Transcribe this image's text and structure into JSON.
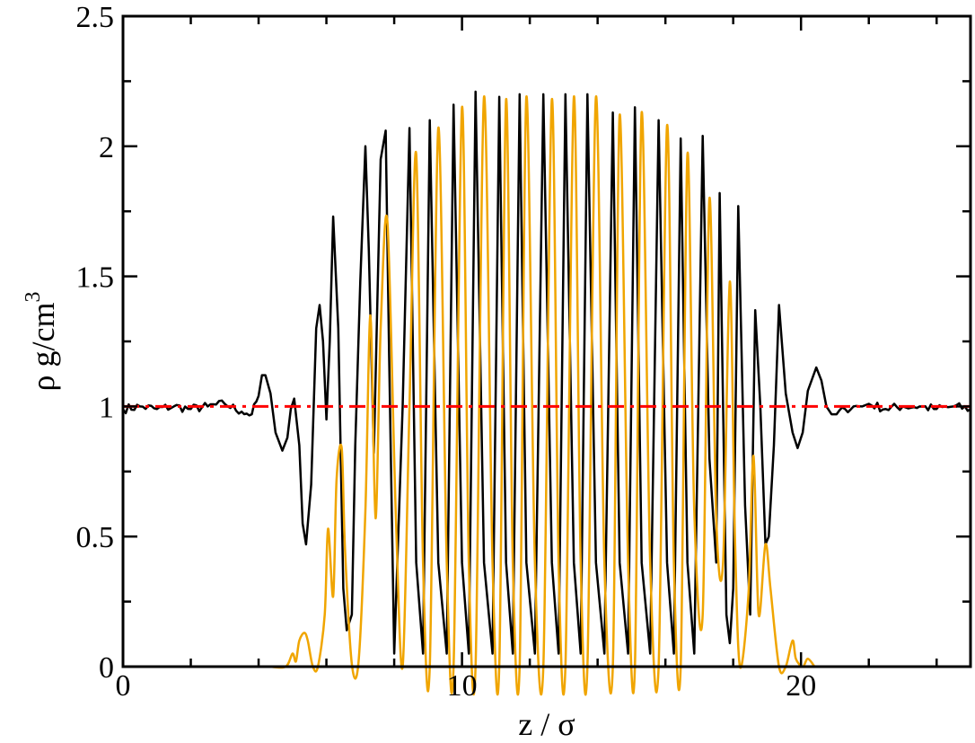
{
  "chart_data": {
    "type": "line",
    "xlabel": "z / σ",
    "ylabel": "ρ g/cm",
    "ylabel_superscript": "3",
    "xlim": [
      0,
      25
    ],
    "ylim": [
      0,
      2.5
    ],
    "x_ticks": [
      0,
      10,
      20
    ],
    "x_tick_labels": [
      "0",
      "10",
      "20"
    ],
    "y_ticks": [
      0,
      0.5,
      1,
      1.5,
      2,
      2.5
    ],
    "y_tick_labels": [
      "0",
      "0.5",
      "1",
      "1.5",
      "2",
      "2.5"
    ],
    "grid": false,
    "legend": "none",
    "series": [
      {
        "color": "#000000",
        "style": "solid",
        "x": [
          0,
          0.5,
          1,
          1.5,
          2,
          2.5,
          3,
          3.5,
          3.8,
          4.0,
          4.1,
          4.2,
          4.35,
          4.5,
          4.7,
          4.85,
          4.95,
          5.05,
          5.2,
          5.3,
          5.4,
          5.55,
          5.7,
          5.8,
          5.9,
          6.0,
          6.1,
          6.2,
          6.35,
          6.5,
          6.6,
          6.75,
          6.85,
          7.0,
          7.15,
          7.25,
          7.4,
          7.6,
          7.75,
          7.85,
          8.0,
          8.25,
          8.45,
          8.65,
          8.85,
          9.05,
          9.3,
          9.55,
          9.75,
          10.0,
          10.2,
          10.4,
          10.65,
          10.9,
          11.1,
          11.3,
          11.5,
          11.7,
          11.9,
          12.15,
          12.4,
          12.65,
          12.85,
          13.05,
          13.3,
          13.5,
          13.7,
          13.95,
          14.2,
          14.45,
          14.65,
          14.9,
          15.1,
          15.3,
          15.55,
          15.8,
          16.05,
          16.25,
          16.45,
          16.65,
          16.85,
          17.1,
          17.3,
          17.5,
          17.6,
          17.8,
          17.9,
          18.0,
          18.15,
          18.35,
          18.5,
          18.65,
          18.8,
          18.95,
          19.05,
          19.2,
          19.35,
          19.55,
          19.75,
          19.9,
          20.05,
          20.2,
          20.45,
          20.6,
          20.75,
          20.9,
          21.05,
          21.3,
          21.55,
          21.8,
          22,
          22.5,
          23,
          23.5,
          24,
          24.5,
          25
        ],
        "y": [
          0.99,
          1.0,
          0.99,
          1.0,
          0.99,
          1.0,
          1.01,
          0.98,
          0.97,
          1.04,
          1.12,
          1.12,
          1.05,
          0.9,
          0.83,
          0.88,
          0.99,
          1.03,
          0.85,
          0.55,
          0.47,
          0.7,
          1.3,
          1.39,
          1.25,
          0.95,
          1.25,
          1.73,
          1.3,
          0.3,
          0.14,
          0.2,
          0.85,
          1.48,
          2.0,
          1.6,
          0.82,
          1.95,
          2.06,
          1.2,
          0.05,
          1.0,
          2.07,
          0.4,
          0.05,
          2.1,
          0.4,
          0.05,
          2.16,
          0.4,
          0.05,
          2.21,
          0.4,
          0.05,
          2.19,
          0.4,
          0.05,
          2.2,
          0.4,
          0.05,
          2.2,
          0.4,
          0.05,
          2.2,
          0.4,
          0.05,
          2.2,
          0.4,
          0.05,
          2.13,
          0.4,
          0.05,
          2.15,
          0.4,
          0.05,
          2.1,
          0.4,
          0.05,
          2.03,
          0.4,
          0.05,
          2.04,
          0.8,
          0.4,
          1.82,
          0.2,
          0.09,
          0.3,
          1.77,
          0.62,
          0.2,
          1.37,
          1.0,
          0.47,
          0.5,
          0.85,
          1.39,
          1.05,
          0.9,
          0.84,
          0.9,
          1.06,
          1.15,
          1.1,
          1.0,
          0.97,
          0.97,
          0.99,
          1.0,
          1.0,
          1.01,
          0.99,
          1.0,
          1.0,
          0.99,
          1.0,
          0.99
        ],
        "noise": true
      },
      {
        "color": "#f0a500",
        "style": "solid",
        "x": [
          4.0,
          4.3,
          4.8,
          5.0,
          5.1,
          5.2,
          5.35,
          5.45,
          5.6,
          5.75,
          5.95,
          6.05,
          6.2,
          6.3,
          6.45,
          6.55,
          6.75,
          6.95,
          7.15,
          7.3,
          7.45,
          7.6,
          7.8,
          8.05,
          8.25,
          8.45,
          8.65,
          8.85,
          9.05,
          9.3,
          9.55,
          9.75,
          10.0,
          10.2,
          10.4,
          10.65,
          10.9,
          11.1,
          11.3,
          11.5,
          11.7,
          11.9,
          12.15,
          12.4,
          12.65,
          12.85,
          13.05,
          13.3,
          13.5,
          13.7,
          13.95,
          14.2,
          14.45,
          14.65,
          14.9,
          15.1,
          15.3,
          15.55,
          15.8,
          16.05,
          16.25,
          16.45,
          16.65,
          16.85,
          17.1,
          17.3,
          17.5,
          17.7,
          17.9,
          18.05,
          18.2,
          18.45,
          18.6,
          18.75,
          18.95,
          19.1,
          19.35,
          19.55,
          19.75,
          19.85,
          20.05,
          20.2,
          20.4
        ],
        "y": [
          0,
          0,
          0,
          0.05,
          0.02,
          0.1,
          0.13,
          0.1,
          0,
          0,
          0.2,
          0.53,
          0.27,
          0.72,
          0.84,
          0.45,
          0.01,
          0.02,
          0.6,
          1.35,
          0.57,
          1.3,
          1.71,
          0.57,
          0,
          1.0,
          1.97,
          0.4,
          0,
          2.07,
          0.4,
          0,
          2.15,
          0.4,
          0,
          2.19,
          0.4,
          0,
          2.18,
          0.4,
          0,
          2.19,
          0.4,
          0,
          2.18,
          0.4,
          0,
          2.19,
          0.4,
          0,
          2.19,
          0.4,
          0,
          2.12,
          0.4,
          0,
          2.13,
          0.4,
          0,
          2.08,
          0.4,
          0,
          1.97,
          0.6,
          0.2,
          1.8,
          0.57,
          0.4,
          1.48,
          0.5,
          0,
          0.28,
          0.81,
          0.2,
          0.47,
          0.3,
          0,
          0,
          0.1,
          0.03,
          0,
          0.03,
          0
        ]
      },
      {
        "color": "#ff0000",
        "style": "dash-dot",
        "x": [
          0,
          25
        ],
        "y": [
          1.0,
          1.0
        ]
      }
    ]
  }
}
